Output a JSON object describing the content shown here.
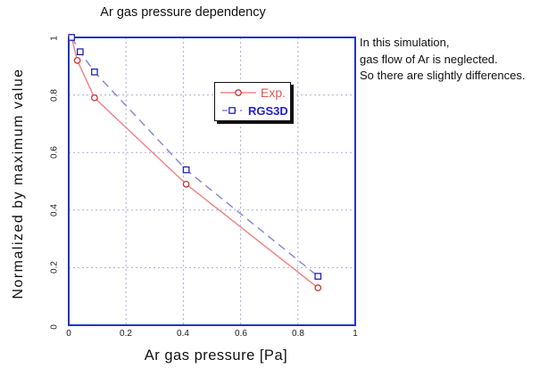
{
  "annotation": {
    "lines": [
      "In this simulation,",
      "gas flow of Ar is neglected.",
      "So there are slightly differences."
    ]
  },
  "chart_data": {
    "type": "line",
    "title": "Ar gas pressure dependency",
    "xlabel": "Ar gas pressure [Pa]",
    "ylabel": "Normalized by maximum value",
    "xlim": [
      0,
      1
    ],
    "ylim": [
      0,
      1
    ],
    "xticks": [
      0,
      0.2,
      0.4,
      0.6,
      0.8,
      1
    ],
    "yticks": [
      0,
      0.2,
      0.4,
      0.6,
      0.8,
      1
    ],
    "grid": true,
    "grid_style": "dotted",
    "legend_position": "inside upper-center",
    "series": [
      {
        "name": "Exp.",
        "marker": "circle",
        "line_style": "solid",
        "marker_color": "#cc3333",
        "line_color": "#ee8888",
        "label_color": "#dd5555",
        "x": [
          0.01,
          0.03,
          0.09,
          0.41,
          0.87
        ],
        "y": [
          1.0,
          0.92,
          0.79,
          0.49,
          0.13
        ]
      },
      {
        "name": "RGS3D",
        "marker": "square",
        "line_style": "dash",
        "marker_color": "#2222bb",
        "line_color": "#8888dd",
        "label_color": "#2222cc",
        "x": [
          0.01,
          0.04,
          0.09,
          0.41,
          0.87
        ],
        "y": [
          1.0,
          0.95,
          0.88,
          0.54,
          0.17
        ]
      }
    ],
    "frame_color": "#2233cc",
    "grid_color": "#aaaae0",
    "text_color": "#111111"
  }
}
